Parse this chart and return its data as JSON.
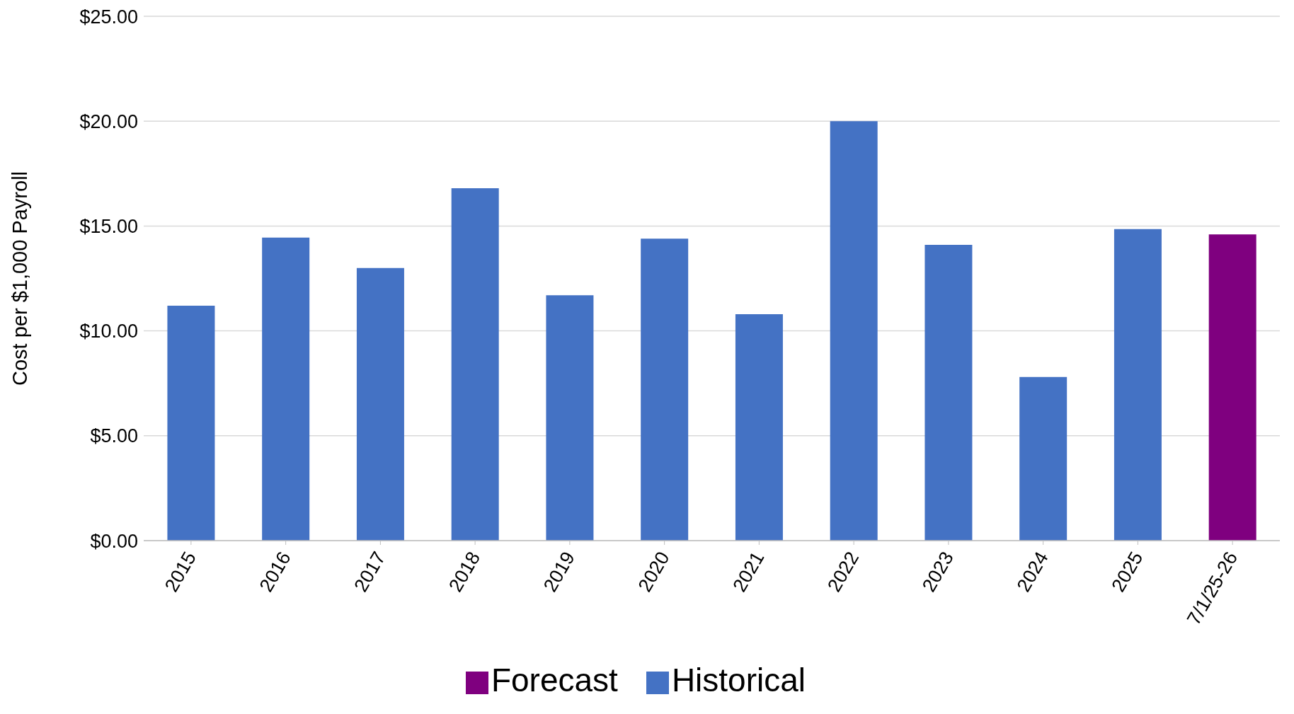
{
  "chart_data": {
    "type": "bar",
    "ylabel": "Cost per $1,000 Payroll",
    "categories": [
      "2015",
      "2016",
      "2017",
      "2018",
      "2019",
      "2020",
      "2021",
      "2022",
      "2023",
      "2024",
      "2025",
      "7/1/25-26"
    ],
    "series": [
      {
        "name": "Historical",
        "color": "#4472c4",
        "values": [
          11.2,
          14.45,
          13.0,
          16.8,
          11.7,
          14.4,
          10.8,
          20.0,
          14.1,
          7.8,
          14.85,
          null
        ]
      },
      {
        "name": "Forecast",
        "color": "#7f007f",
        "values": [
          null,
          null,
          null,
          null,
          null,
          null,
          null,
          null,
          null,
          null,
          null,
          14.6
        ]
      }
    ],
    "stacked": true,
    "ylim": [
      0,
      25
    ],
    "yticks": [
      {
        "value": 0,
        "label": "$0.00"
      },
      {
        "value": 5,
        "label": "$5.00"
      },
      {
        "value": 10,
        "label": "$10.00"
      },
      {
        "value": 15,
        "label": "$15.00"
      },
      {
        "value": 20,
        "label": "$20.00"
      },
      {
        "value": 25,
        "label": "$25.00"
      }
    ],
    "grid": "y",
    "legend": "bottom"
  }
}
